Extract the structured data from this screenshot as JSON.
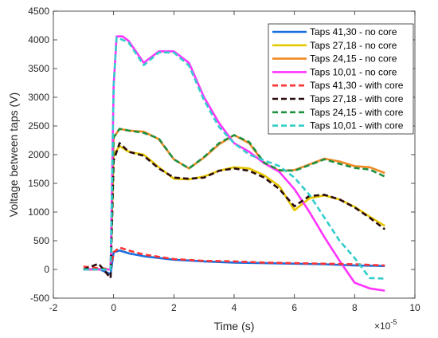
{
  "chart_data": {
    "type": "line",
    "xlabel": "Time (s)",
    "ylabel": "Voltage between taps (V)",
    "x_exponent_label": "×10",
    "x_exponent_power": "-5",
    "xlim": [
      -2,
      10
    ],
    "ylim": [
      -500,
      4500
    ],
    "xticks": [
      -2,
      0,
      2,
      4,
      6,
      8,
      10
    ],
    "yticks": [
      -500,
      0,
      500,
      1000,
      1500,
      2000,
      2500,
      3000,
      3500,
      4000,
      4500
    ],
    "grid": false,
    "legend_position": "top-right",
    "series": [
      {
        "name": "Taps 41,30 - no core",
        "color": "#1a6fdf",
        "dash": "solid",
        "x": [
          -1,
          -0.5,
          -0.1,
          0,
          0.2,
          0.5,
          1,
          2,
          3,
          4,
          5,
          6,
          7,
          8,
          9
        ],
        "y": [
          0,
          10,
          -80,
          300,
          330,
          280,
          230,
          170,
          140,
          120,
          110,
          100,
          90,
          70,
          60
        ]
      },
      {
        "name": "Taps 27,18 - no core",
        "color": "#e6c800",
        "dash": "solid",
        "x": [
          -1,
          -0.1,
          0,
          0.2,
          0.5,
          1,
          1.5,
          2,
          2.5,
          3,
          3.5,
          4,
          4.5,
          5,
          5.5,
          6,
          6.5,
          7,
          7.5,
          8,
          8.5,
          9
        ],
        "y": [
          0,
          0,
          2000,
          2150,
          2050,
          2000,
          1780,
          1580,
          1570,
          1620,
          1720,
          1780,
          1760,
          1640,
          1450,
          1030,
          1240,
          1290,
          1220,
          1090,
          920,
          760
        ]
      },
      {
        "name": "Taps 24,15 - no core",
        "color": "#f08a24",
        "dash": "solid",
        "x": [
          -1,
          -0.1,
          0,
          0.2,
          0.5,
          1,
          1.5,
          2,
          2.5,
          3,
          3.5,
          4,
          4.5,
          5,
          5.5,
          6,
          6.5,
          7,
          7.5,
          8,
          8.5,
          9
        ],
        "y": [
          0,
          0,
          2300,
          2450,
          2420,
          2400,
          2270,
          1920,
          1760,
          1950,
          2180,
          2340,
          2200,
          1850,
          1720,
          1730,
          1830,
          1930,
          1880,
          1800,
          1780,
          1680
        ]
      },
      {
        "name": "Taps 10,01 - no core",
        "color": "#ff33ff",
        "dash": "solid",
        "x": [
          -1,
          -0.1,
          0,
          0.1,
          0.3,
          0.5,
          1,
          1.5,
          2,
          2.5,
          3,
          3.5,
          4,
          4.5,
          5,
          5.5,
          6,
          6.5,
          7,
          7.5,
          8,
          8.5,
          9
        ],
        "y": [
          0,
          0,
          3200,
          4060,
          4060,
          3980,
          3600,
          3800,
          3800,
          3600,
          3000,
          2550,
          2200,
          2050,
          1850,
          1700,
          1400,
          1000,
          560,
          150,
          -230,
          -330,
          -370
        ]
      },
      {
        "name": "Taps 41,30 - with core",
        "color": "#ff3333",
        "dash": "dashed",
        "x": [
          -1,
          -0.5,
          -0.1,
          0,
          0.2,
          0.5,
          1,
          2,
          3,
          4,
          5,
          6,
          7,
          8,
          9
        ],
        "y": [
          50,
          20,
          10,
          300,
          380,
          330,
          260,
          180,
          150,
          140,
          120,
          110,
          100,
          90,
          70
        ]
      },
      {
        "name": "Taps 27,18 - with core",
        "color": "#2a0a0a",
        "dash": "dashed",
        "x": [
          -1,
          -0.5,
          -0.1,
          0,
          0.2,
          0.5,
          1,
          1.5,
          2,
          2.5,
          3,
          3.5,
          4,
          4.5,
          5,
          5.5,
          6,
          6.5,
          7,
          7.5,
          8,
          8.5,
          9
        ],
        "y": [
          0,
          100,
          -150,
          1900,
          2200,
          2050,
          1980,
          1760,
          1600,
          1580,
          1600,
          1720,
          1760,
          1720,
          1600,
          1400,
          1100,
          1280,
          1300,
          1220,
          1080,
          900,
          700
        ]
      },
      {
        "name": "Taps 24,15 - with core",
        "color": "#1e9040",
        "dash": "dashed",
        "x": [
          -1,
          -0.1,
          0,
          0.2,
          0.5,
          1,
          1.5,
          2,
          2.5,
          3,
          3.5,
          4,
          4.5,
          5,
          5.5,
          6,
          6.5,
          7,
          7.5,
          8,
          8.5,
          9
        ],
        "y": [
          0,
          0,
          2300,
          2450,
          2420,
          2380,
          2280,
          1920,
          1760,
          1960,
          2200,
          2340,
          2220,
          1860,
          1730,
          1720,
          1820,
          1920,
          1840,
          1770,
          1740,
          1620
        ]
      },
      {
        "name": "Taps 10,01 - with core",
        "color": "#33cccc",
        "dash": "dashed",
        "x": [
          -1,
          -0.1,
          0,
          0.1,
          0.3,
          0.5,
          1,
          1.5,
          2,
          2.5,
          3,
          3.5,
          4,
          4.5,
          5,
          5.5,
          6,
          6.5,
          7,
          7.5,
          8,
          8.5,
          9
        ],
        "y": [
          0,
          0,
          3200,
          4040,
          4000,
          3950,
          3560,
          3780,
          3780,
          3550,
          2950,
          2480,
          2200,
          2000,
          1900,
          1800,
          1600,
          1300,
          900,
          500,
          200,
          -150,
          -160
        ]
      }
    ]
  }
}
